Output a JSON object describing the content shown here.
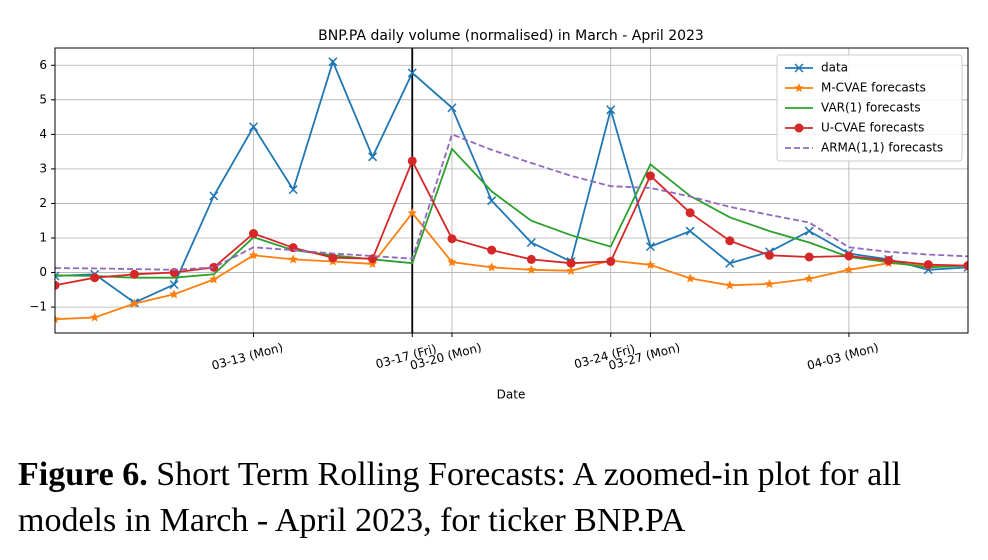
{
  "chart_data": {
    "type": "line",
    "title": "BNP.PA daily volume (normalised) in March - April 2023",
    "xlabel": "Date",
    "categories": [
      null,
      null,
      null,
      null,
      null,
      "03-13 (Mon)",
      null,
      null,
      null,
      "03-17 (Fri)",
      "03-20 (Mon)",
      null,
      null,
      null,
      "03-24 (Fri)",
      "03-27 (Mon)",
      null,
      null,
      null,
      null,
      "04-03 (Mon)",
      null,
      null,
      null
    ],
    "vline_index": 9,
    "ylim": [
      -1.75,
      6.5
    ],
    "yticks": [
      {
        "value": -1,
        "label": "−1"
      },
      0,
      1,
      2,
      3,
      4,
      5,
      6
    ],
    "grid": true,
    "legend": "upper right",
    "series": [
      {
        "name": "data",
        "color": "#1f77b4",
        "marker": "x",
        "dash": false,
        "values": [
          -0.1,
          -0.05,
          -0.87,
          -0.35,
          2.22,
          4.22,
          2.4,
          6.1,
          3.35,
          5.78,
          4.77,
          2.08,
          0.87,
          0.32,
          4.71,
          0.75,
          1.2,
          0.27,
          0.6,
          1.2,
          0.55,
          0.38,
          0.08,
          0.15
        ]
      },
      {
        "name": "M-CVAE forecasts",
        "color": "#ff7f0e",
        "marker": "star",
        "dash": false,
        "values": [
          -1.35,
          -1.3,
          -0.9,
          -0.63,
          -0.2,
          0.5,
          0.38,
          0.32,
          0.25,
          1.72,
          0.3,
          0.15,
          0.08,
          0.05,
          0.35,
          0.22,
          -0.17,
          -0.37,
          -0.33,
          -0.18,
          0.08,
          0.27,
          0.2,
          0.2
        ]
      },
      {
        "name": "VAR(1) forecasts",
        "color": "#2ca02c",
        "marker": "none",
        "dash": false,
        "values": [
          -0.08,
          -0.1,
          -0.15,
          -0.15,
          -0.05,
          1.02,
          0.65,
          0.5,
          0.38,
          0.27,
          3.58,
          2.35,
          1.5,
          1.08,
          0.75,
          3.13,
          2.22,
          1.6,
          1.2,
          0.87,
          0.45,
          0.3,
          0.15,
          0.2
        ]
      },
      {
        "name": "U-CVAE forecasts",
        "color": "#d62728",
        "marker": "circle",
        "dash": false,
        "values": [
          -0.37,
          -0.15,
          -0.05,
          0,
          0.15,
          1.13,
          0.72,
          0.43,
          0.4,
          3.23,
          0.98,
          0.65,
          0.38,
          0.27,
          0.32,
          2.8,
          1.73,
          0.92,
          0.5,
          0.45,
          0.48,
          0.35,
          0.23,
          0.2
        ]
      },
      {
        "name": "ARMA(1,1) forecasts",
        "color": "#9467bd",
        "marker": "none",
        "dash": true,
        "values": [
          0.13,
          0.12,
          0.1,
          0.08,
          0.15,
          0.73,
          0.65,
          0.55,
          0.48,
          0.4,
          4,
          3.55,
          3.17,
          2.8,
          2.5,
          2.45,
          2.2,
          1.9,
          1.67,
          1.45,
          0.73,
          0.6,
          0.52,
          0.47
        ]
      }
    ]
  },
  "caption": {
    "label": "Figure 6.",
    "text": "Short Term Rolling Forecasts: A zoomed-in plot for all models in March - April 2023, for ticker BNP.PA"
  }
}
